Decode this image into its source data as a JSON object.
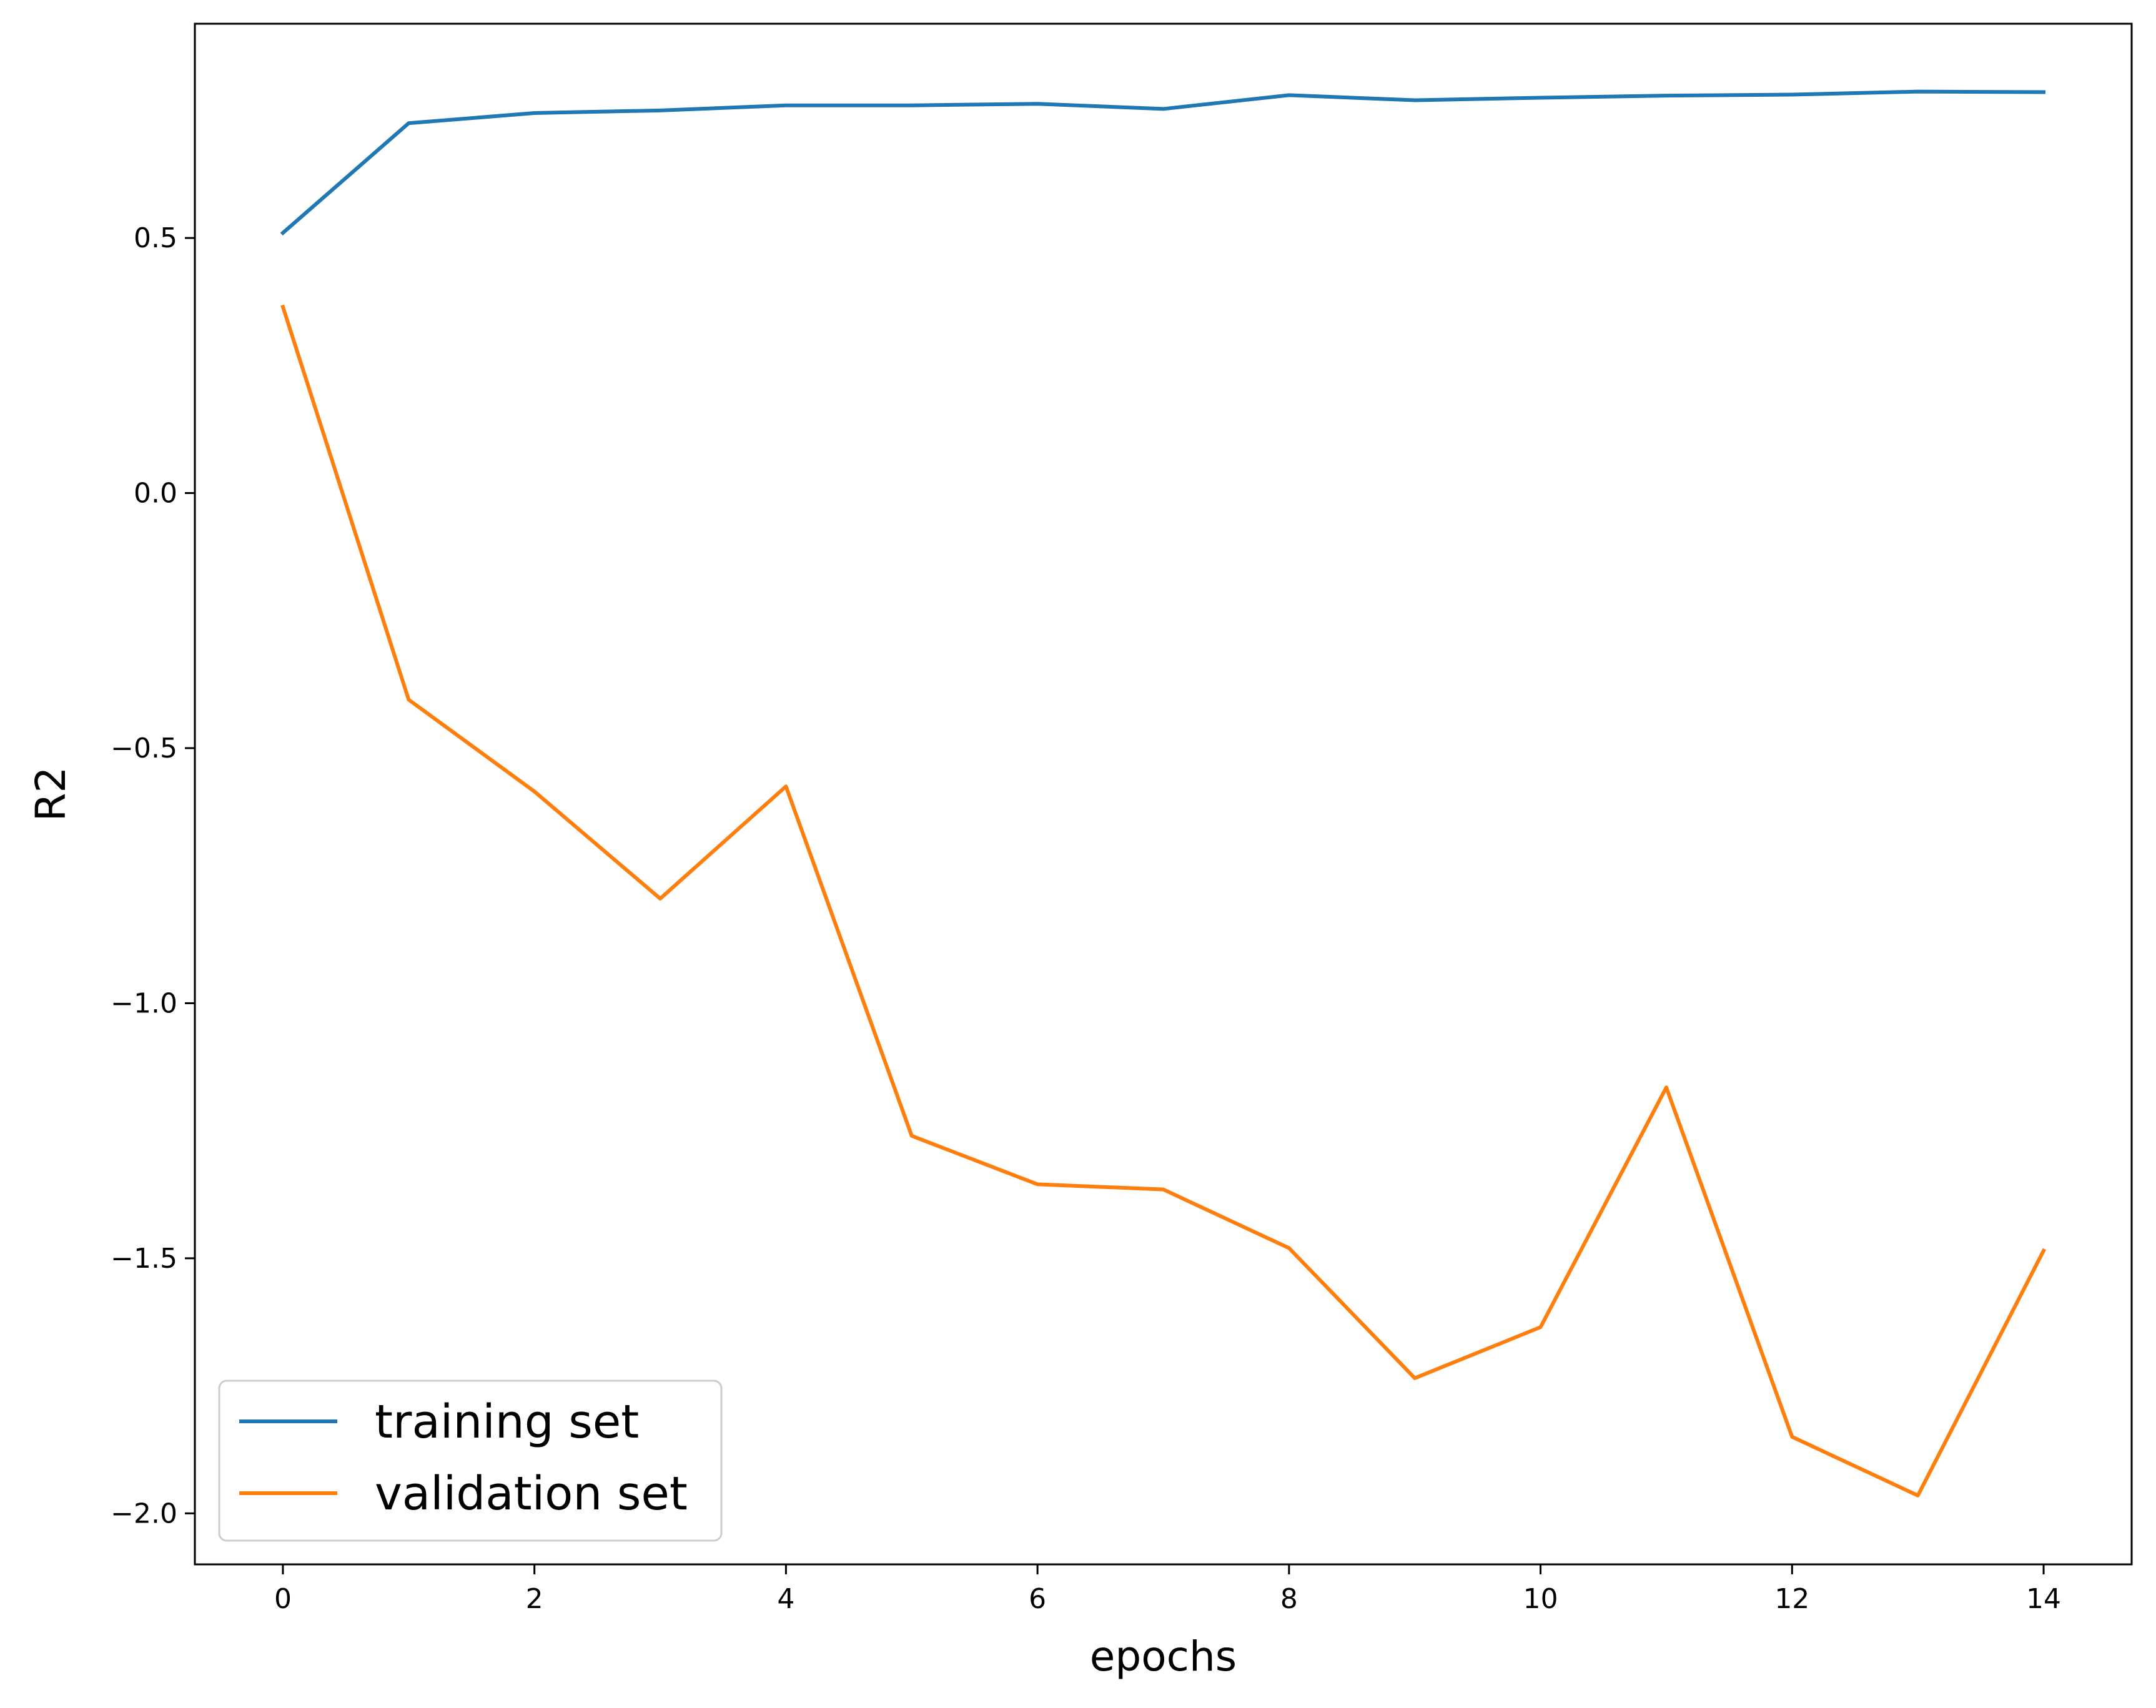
{
  "chart_data": {
    "type": "line",
    "title": "",
    "xlabel": "epochs",
    "ylabel": "R2",
    "x": [
      0,
      1,
      2,
      3,
      4,
      5,
      6,
      7,
      8,
      9,
      10,
      11,
      12,
      13,
      14
    ],
    "xlim": [
      -0.7,
      14.7
    ],
    "ylim": [
      -2.1,
      0.92
    ],
    "xticks": [
      0,
      2,
      4,
      6,
      8,
      10,
      12,
      14
    ],
    "xtick_labels": [
      "0",
      "2",
      "4",
      "6",
      "8",
      "10",
      "12",
      "14"
    ],
    "yticks": [
      0.5,
      0.0,
      -0.5,
      -1.0,
      -1.5,
      -2.0
    ],
    "ytick_labels": [
      "0.5",
      "0.0",
      "−0.5",
      "−1.0",
      "−1.5",
      "−2.0"
    ],
    "grid": false,
    "legend_position": "lower-left",
    "series": [
      {
        "name": "training set",
        "color": "#1f77b4",
        "values": [
          0.51,
          0.725,
          0.745,
          0.75,
          0.76,
          0.76,
          0.763,
          0.753,
          0.78,
          0.77,
          0.775,
          0.779,
          0.781,
          0.787,
          0.786
        ]
      },
      {
        "name": "validation set",
        "color": "#ff7f0e",
        "values": [
          0.365,
          -0.405,
          -0.585,
          -0.795,
          -0.575,
          -1.26,
          -1.355,
          -1.365,
          -1.48,
          -1.735,
          -1.635,
          -1.165,
          -1.85,
          -1.965,
          -1.485
        ]
      }
    ]
  }
}
